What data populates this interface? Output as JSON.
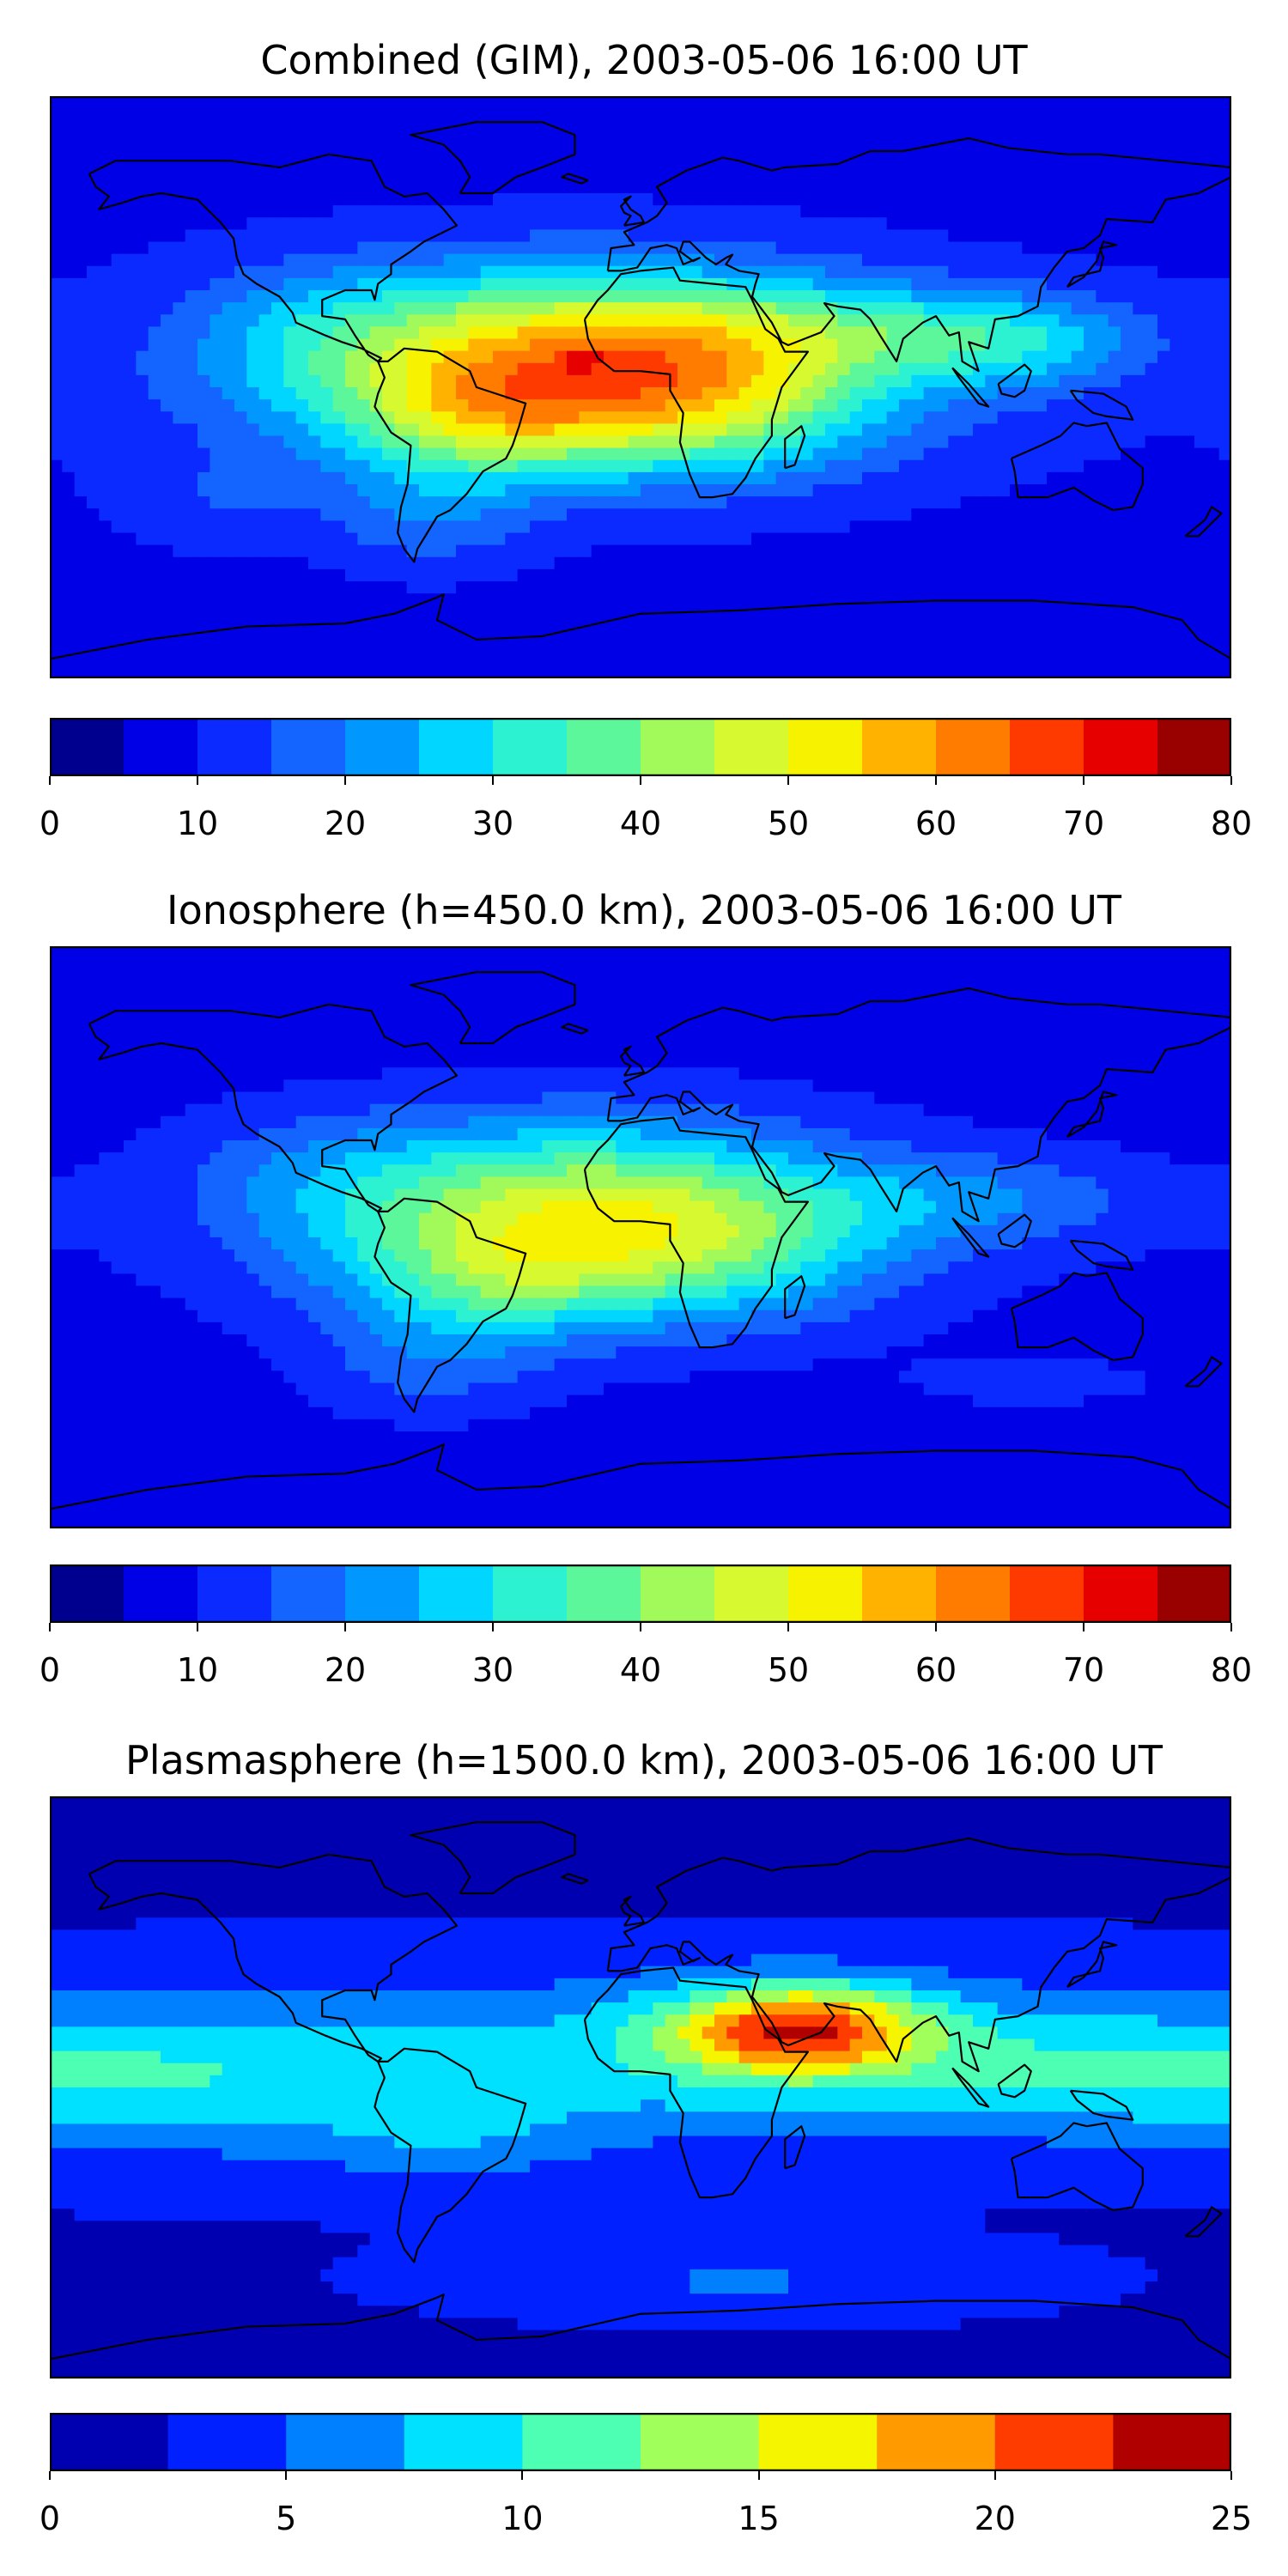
{
  "chart_data": [
    {
      "type": "heatmap",
      "title": "Combined (GIM), 2003-05-06 16:00 UT",
      "colorbar": {
        "range": [
          0,
          80
        ],
        "step": 5,
        "ticks": [
          "0",
          "10",
          "20",
          "30",
          "40",
          "50",
          "60",
          "70",
          "80"
        ],
        "tick_values": [
          0,
          10,
          20,
          30,
          40,
          50,
          60,
          70,
          80
        ],
        "colors": [
          "#00008f",
          "#0000e6",
          "#0a2aff",
          "#1464ff",
          "#0098ff",
          "#00d6ff",
          "#2cf2d2",
          "#5cf79a",
          "#a2f95a",
          "#d6f930",
          "#f7f200",
          "#ffb300",
          "#ff7c00",
          "#ff3a00",
          "#e60000",
          "#990000"
        ]
      },
      "peak": {
        "lon": -18,
        "lat": 8,
        "value": 73
      }
    },
    {
      "type": "heatmap",
      "title": "Ionosphere  (h=450.0 km), 2003-05-06 16:00 UT",
      "colorbar": {
        "range": [
          0,
          80
        ],
        "step": 5,
        "ticks": [
          "0",
          "10",
          "20",
          "30",
          "40",
          "50",
          "60",
          "70",
          "80"
        ],
        "tick_values": [
          0,
          10,
          20,
          30,
          40,
          50,
          60,
          70,
          80
        ],
        "colors": [
          "#00008f",
          "#0000e6",
          "#0a2aff",
          "#1464ff",
          "#0098ff",
          "#00d6ff",
          "#2cf2d2",
          "#5cf79a",
          "#a2f95a",
          "#d6f930",
          "#f7f200",
          "#ffb300",
          "#ff7c00",
          "#ff3a00",
          "#e60000",
          "#990000"
        ]
      },
      "peak": {
        "lon": -18,
        "lat": 8,
        "value": 57
      }
    },
    {
      "type": "heatmap",
      "title": "Plasmasphere (h=1500.0 km), 2003-05-06 16:00 UT",
      "colorbar": {
        "range": [
          0,
          25
        ],
        "step": 2.5,
        "ticks": [
          "0",
          "5",
          "10",
          "15",
          "20",
          "25"
        ],
        "tick_values": [
          0,
          5,
          10,
          15,
          20,
          25
        ],
        "colors": [
          "#0000b0",
          "#0020ff",
          "#0080ff",
          "#00e0ff",
          "#4dffb2",
          "#a0ff5a",
          "#f5f500",
          "#ff9a00",
          "#ff3c00",
          "#b00000"
        ]
      },
      "peak": {
        "lon": 48,
        "lat": 18,
        "value": 21
      }
    }
  ]
}
